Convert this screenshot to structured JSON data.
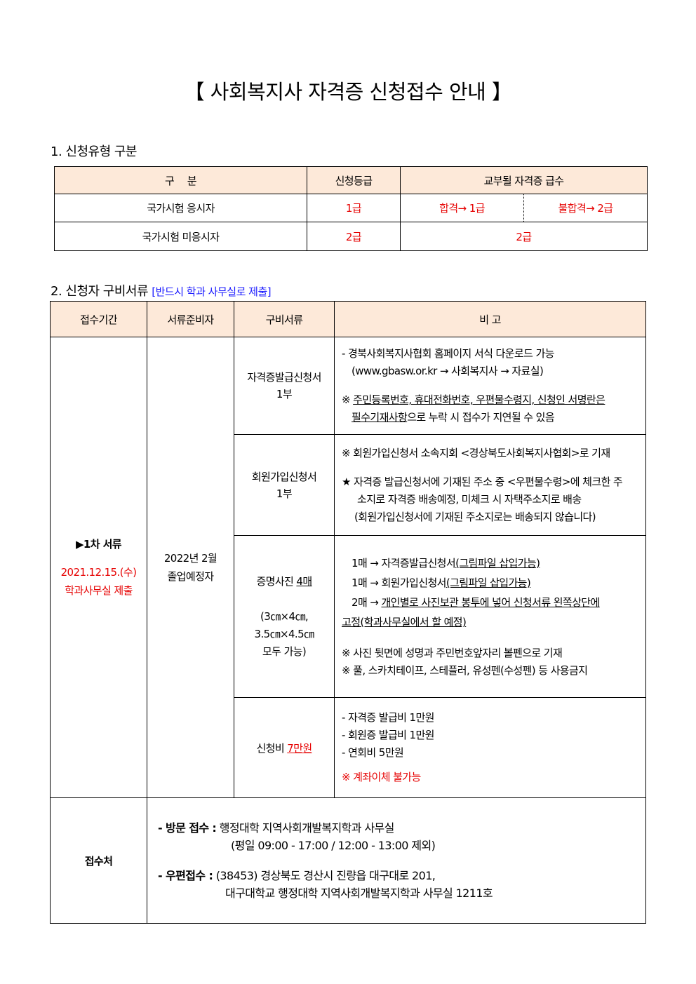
{
  "title": "【 사회복지사 자격증 신청접수 안내 】",
  "section1": {
    "heading": "1. 신청유형 구분",
    "headers": [
      "구　 분",
      "신청등급",
      "교부될 자격증 급수"
    ],
    "rows": [
      {
        "type": "국가시험 응시자",
        "grade": "1급",
        "pass": "합격→ 1급",
        "fail": "불합격→ 2급"
      },
      {
        "type": "국가시험 미응시자",
        "grade": "2급",
        "result": "2급"
      }
    ]
  },
  "section2": {
    "heading": "2. 신청자 구비서류",
    "note": "[반드시 학과 사무실로 제출]",
    "headers": [
      "접수기간",
      "서류준비자",
      "구비서류",
      "비 고"
    ],
    "period": {
      "label": "▶1차 서류",
      "date": "2021.12.15.(수)",
      "place": "학과사무실 제출"
    },
    "preparer": [
      "2022년 2월",
      "졸업예정자"
    ],
    "docs": [
      {
        "name": [
          "자격증발급신청서",
          "1부"
        ],
        "notes": {
          "l1": "- 경북사회복지사협회 홈페이지 서식 다운로드 가능",
          "l2": "(www.gbasw.or.kr → 사회복지사 → 자료실)",
          "l3a": "※ ",
          "l3b": "주민등록번호, 휴대전화번호, 우편물수령지, 신청인 서명란은",
          "l4a": "필수기재사항",
          "l4b": "으로 누락 시 접수가 지연될 수 있음"
        }
      },
      {
        "name": [
          "회원가입신청서",
          "1부"
        ],
        "notes": {
          "l1": "※ 회원가입신청서 소속지회 <경상북도사회복지사협회>로 기재",
          "l2": "★ 자격증 발급신청서에 기재된 주소 중 <우편물수령>에 체크한 주",
          "l3": "소지로 자격증 배송예정, 미체크 시 자택주소지로 배송",
          "l4": "(회원가입신청서에 기재된 주소지로는 배송되지 않습니다)"
        }
      },
      {
        "name_a": "증명사진 ",
        "name_b": "4매",
        "size": [
          "(3㎝×4㎝,",
          "3.5㎝×4.5㎝",
          "모두 가능)"
        ],
        "notes": {
          "l1a": "1매 → 자격증발급신청서",
          "l1b": "(그림파일 삽입가능)",
          "l2a": "1매 → 회원가입신청서",
          "l2b": "(그림파일 삽입가능)",
          "l3a": "2매 → ",
          "l3b": "개인별로 사진보관 봉투에 넣어 신청서류 왼쪽상단에",
          "l4": "고정(학과사무실에서 할 예정)",
          "l5": "※ 사진 뒷면에 성명과 주민번호앞자리 볼펜으로 기재",
          "l6": "※ 풀, 스카치테이프, 스테플러, 유성펜(수성펜) 등 사용금지"
        }
      },
      {
        "name_a": "신청비 ",
        "name_b": "7만원",
        "notes": {
          "l1": "- 자격증 발급비 1만원",
          "l2": "- 회원증 발급비 1만원",
          "l3": "- 연회비 5만원",
          "l4": "※ 계좌이체 불가능"
        }
      }
    ],
    "receipt": {
      "label": "접수처",
      "visit_label": "- 방문 접수 :",
      "visit": "행정대학 지역사회개발복지학과 사무실",
      "visit_hours": "(평일 09:00 - 17:00 / 12:00 - 13:00 제외)",
      "mail_label": "- 우편접수 :",
      "mail": "(38453) 경상북도 경산시 진량읍 대구대로 201,",
      "mail2": "대구대학교 행정대학 지역사회개발복지학과 사무실 1211호"
    }
  },
  "colors": {
    "header_bg": "#fde9d9",
    "red": "#e60000",
    "blue": "#1a1aff"
  }
}
